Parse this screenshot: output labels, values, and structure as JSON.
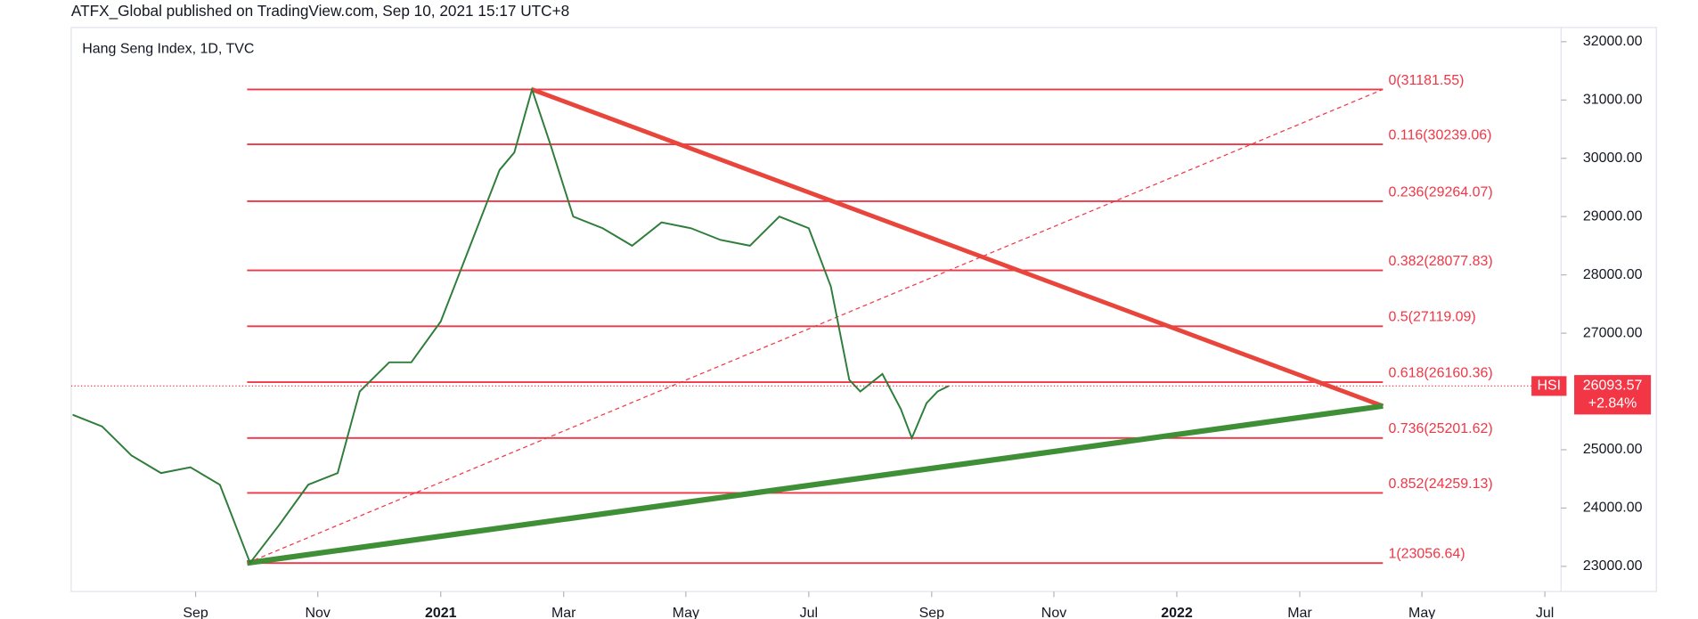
{
  "header": "ATFX_Global published on TradingView.com, Sep 10, 2021 15:17 UTC+8",
  "chart_data": {
    "type": "line",
    "title": "Hang Seng Index, 1D, TVC",
    "x": [
      2020.5,
      2020.54,
      2020.58,
      2020.62,
      2020.66,
      2020.7,
      2020.741,
      2020.78,
      2020.82,
      2020.86,
      2020.89,
      2020.93,
      2020.96,
      2021.0,
      2021.04,
      2021.08,
      2021.1,
      2021.124,
      2021.15,
      2021.18,
      2021.22,
      2021.26,
      2021.3,
      2021.34,
      2021.38,
      2021.42,
      2021.46,
      2021.5,
      2021.53,
      2021.555,
      2021.57,
      2021.6,
      2021.625,
      2021.64,
      2021.66,
      2021.675,
      2021.69
    ],
    "series": [
      {
        "name": "HSI",
        "color": "#2f7d3a",
        "values": [
          25600,
          25400,
          24900,
          24600,
          24700,
          24400,
          23060,
          23700,
          24400,
          24600,
          26000,
          26500,
          26500,
          27200,
          28500,
          29800,
          30100,
          31181,
          30200,
          29000,
          28800,
          28500,
          28900,
          28800,
          28600,
          28500,
          29000,
          28800,
          27800,
          26200,
          26000,
          26300,
          25700,
          25200,
          25800,
          26000,
          26093.57
        ]
      }
    ],
    "last": {
      "symbol": "HSI",
      "value": 26093.57,
      "change": {
        "value": 2.84,
        "label": "+2.84%"
      }
    },
    "xlim": [
      2020.498,
      2022.522
    ],
    "xticks": [
      {
        "value": 2020.667,
        "label": "Sep"
      },
      {
        "value": 2020.833,
        "label": "Nov"
      },
      {
        "value": 2021.0,
        "label": "2021"
      },
      {
        "value": 2021.167,
        "label": "Mar"
      },
      {
        "value": 2021.333,
        "label": "May"
      },
      {
        "value": 2021.5,
        "label": "Jul"
      },
      {
        "value": 2021.667,
        "label": "Sep"
      },
      {
        "value": 2021.833,
        "label": "Nov"
      },
      {
        "value": 2022.0,
        "label": "2022"
      },
      {
        "value": 2022.167,
        "label": "Mar"
      },
      {
        "value": 2022.333,
        "label": "May"
      },
      {
        "value": 2022.5,
        "label": "Jul"
      }
    ],
    "ylim": [
      22568,
      32244
    ],
    "yticks": [
      {
        "value": 23000,
        "label": "23000.00"
      },
      {
        "value": 24000,
        "label": "24000.00"
      },
      {
        "value": 25000,
        "label": "25000.00"
      },
      {
        "value": 26000,
        "label": "26000.00"
      },
      {
        "value": 27000,
        "label": "27000.00"
      },
      {
        "value": 28000,
        "label": "28000.00"
      },
      {
        "value": 29000,
        "label": "29000.00"
      },
      {
        "value": 30000,
        "label": "30000.00"
      },
      {
        "value": 31000,
        "label": "31000.00"
      },
      {
        "value": 32000,
        "label": "32000.00"
      }
    ],
    "fib_x": [
      2020.737,
      2022.28
    ],
    "fib_color": "#f23645",
    "fib_levels": [
      {
        "value": 31181.55,
        "label": "0(31181.55)"
      },
      {
        "value": 30239.06,
        "label": "0.116(30239.06)"
      },
      {
        "value": 29264.07,
        "label": "0.236(29264.07)"
      },
      {
        "value": 28077.83,
        "label": "0.382(28077.83)"
      },
      {
        "value": 27119.09,
        "label": "0.5(27119.09)"
      },
      {
        "value": 26160.36,
        "label": "0.618(26160.36)"
      },
      {
        "value": 25201.62,
        "label": "0.736(25201.62)"
      },
      {
        "value": 24259.13,
        "label": "0.852(24259.13)"
      },
      {
        "value": 23056.64,
        "label": "1(23056.64)"
      }
    ],
    "trendlines": [
      {
        "color": "#e8463c",
        "width": 4,
        "dash": false,
        "x": [
          2021.124,
          2022.28
        ],
        "y": [
          31181.55,
          25750
        ]
      },
      {
        "color": "#3f8f36",
        "width": 5,
        "dash": false,
        "x": [
          2020.737,
          2022.28
        ],
        "y": [
          23056.64,
          25750
        ]
      },
      {
        "color": "#f23645",
        "width": 1,
        "dash": true,
        "x": [
          2020.737,
          2022.28
        ],
        "y": [
          23056.64,
          31181.55
        ]
      }
    ]
  }
}
